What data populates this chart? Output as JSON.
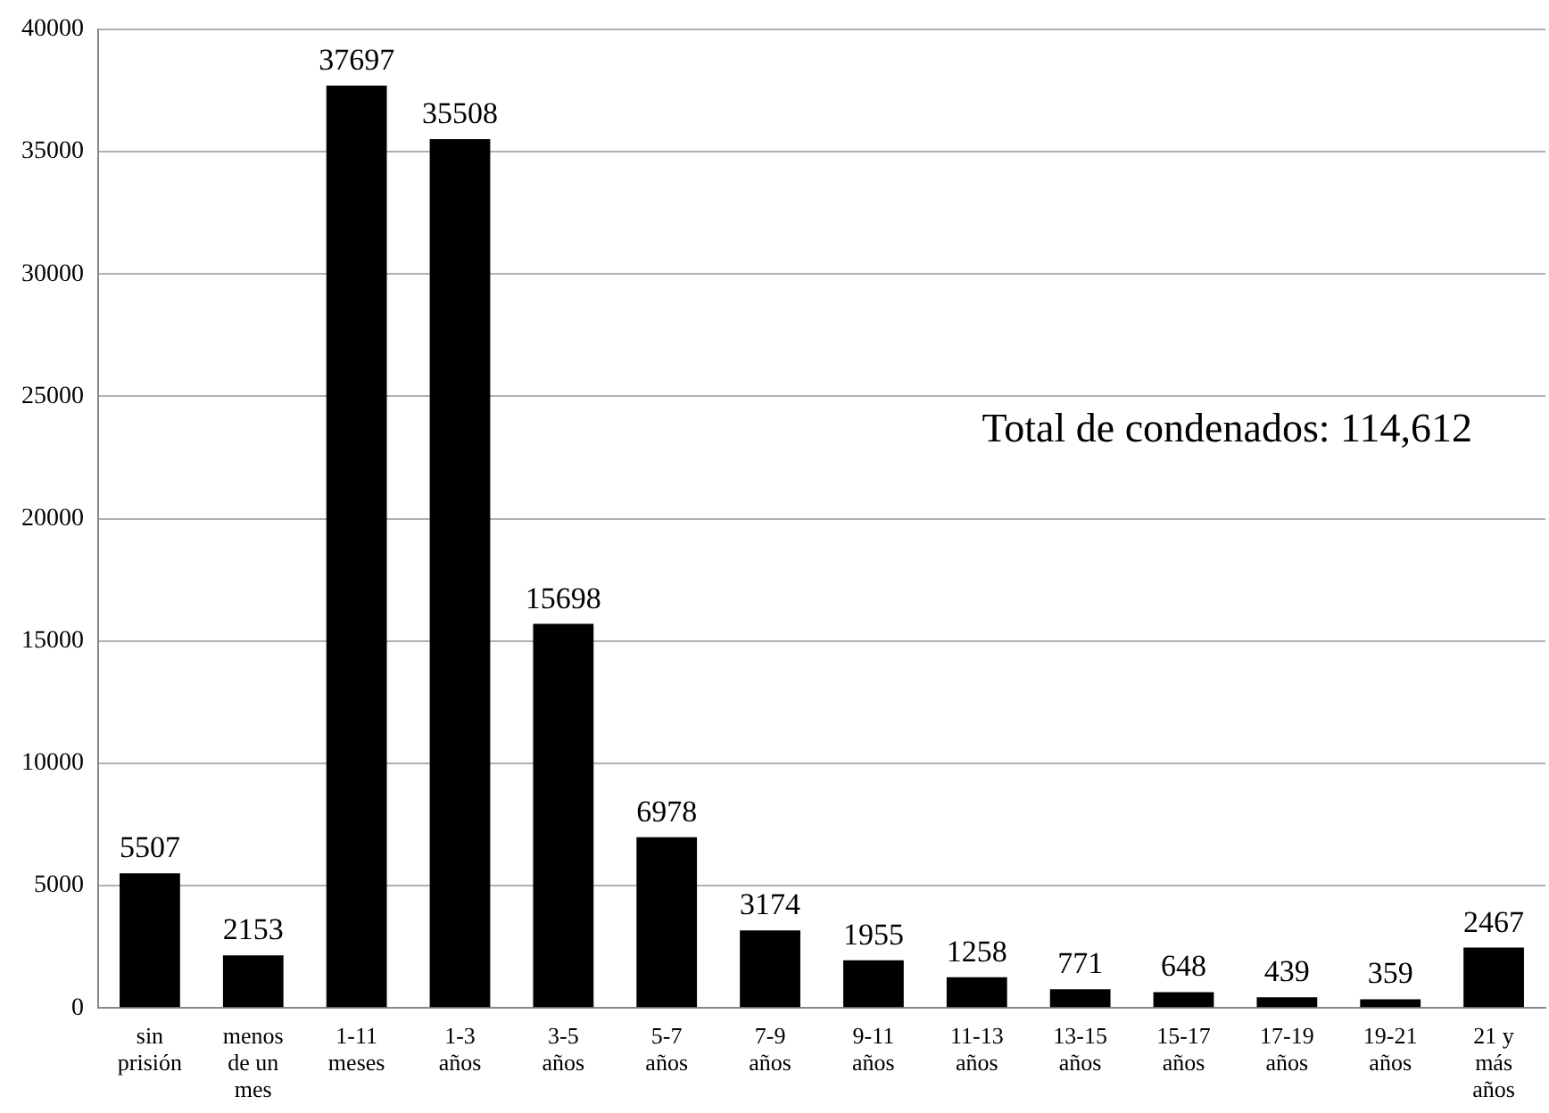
{
  "chart_data": {
    "type": "bar",
    "categories": [
      "sin prisión",
      "menos de un mes",
      "1-11 meses",
      "1-3 años",
      "3-5 años",
      "5-7 años",
      "7-9 años",
      "9-11 años",
      "11-13 años",
      "13-15 años",
      "15-17 años",
      "17-19 años",
      "19-21 años",
      "21 y más años"
    ],
    "values": [
      5507,
      2153,
      37697,
      35508,
      15698,
      6978,
      3174,
      1955,
      1258,
      771,
      648,
      439,
      359,
      2467
    ],
    "color": "#000000",
    "ylim": [
      0,
      40000
    ],
    "yticks": [
      0,
      5000,
      10000,
      15000,
      20000,
      25000,
      30000,
      35000,
      40000
    ],
    "grid": "y",
    "data_labels": true,
    "annotations": [
      "Total de condenados: 114,612"
    ]
  }
}
